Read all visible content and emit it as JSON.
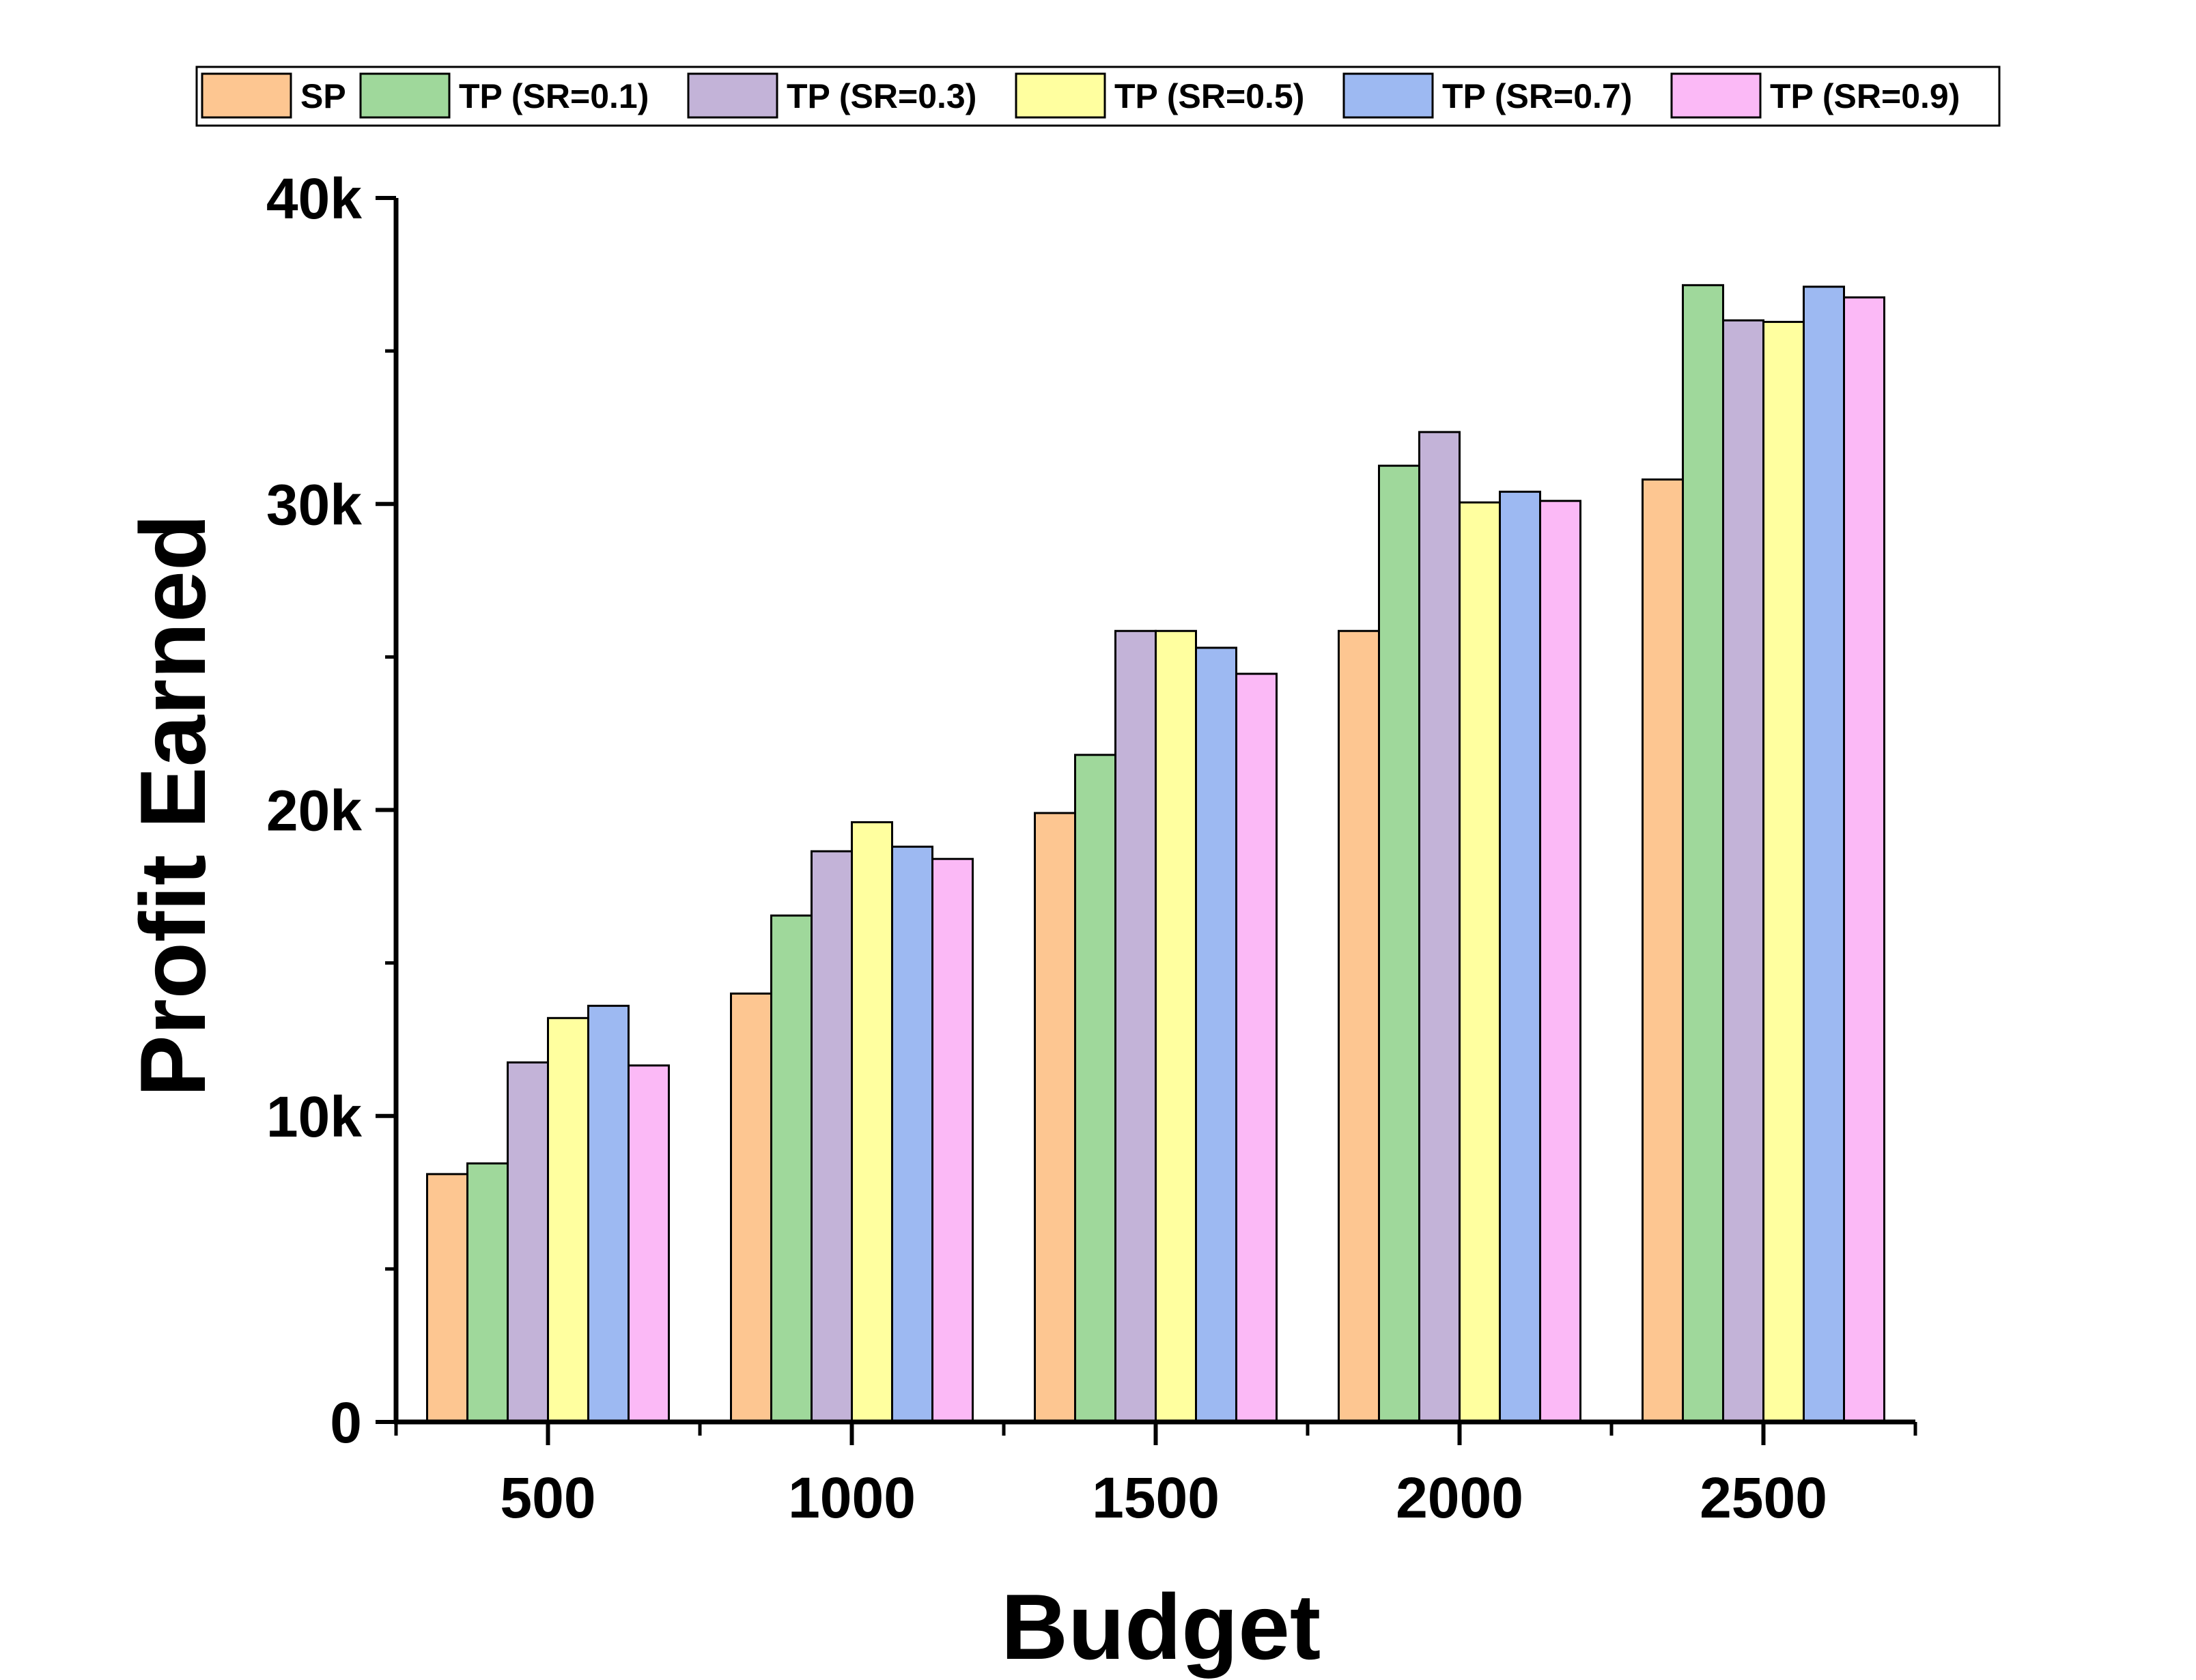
{
  "chart_data": {
    "type": "bar",
    "title": "",
    "xlabel": "Budget",
    "ylabel": "Profit Earned",
    "categories": [
      "500",
      "1000",
      "1500",
      "2000",
      "2500"
    ],
    "ylim": [
      0,
      40000
    ],
    "yticks": [
      {
        "value": 0,
        "label": "0"
      },
      {
        "value": 10000,
        "label": "10k"
      },
      {
        "value": 20000,
        "label": "20k"
      },
      {
        "value": 30000,
        "label": "30k"
      },
      {
        "value": 40000,
        "label": "40k"
      }
    ],
    "grid": false,
    "legend_position": "top",
    "series": [
      {
        "name": "SP",
        "color": "#FDC691",
        "values": [
          8100,
          14000,
          19900,
          25850,
          30800
        ]
      },
      {
        "name": "TP (SR=0.1)",
        "color": "#9FD89B",
        "values": [
          8450,
          16550,
          21800,
          31250,
          37150
        ]
      },
      {
        "name": "TP (SR=0.3)",
        "color": "#C3B3D8",
        "values": [
          11750,
          18650,
          25850,
          32350,
          36000
        ]
      },
      {
        "name": "TP (SR=0.5)",
        "color": "#FFFF9F",
        "values": [
          13200,
          19600,
          25850,
          30050,
          35950
        ]
      },
      {
        "name": "TP (SR=0.7)",
        "color": "#9DB9F2",
        "values": [
          13600,
          18800,
          25300,
          30400,
          37100
        ]
      },
      {
        "name": "TP (SR=0.9)",
        "color": "#FBB9F6",
        "values": [
          11650,
          18400,
          24450,
          30100,
          36750
        ]
      }
    ]
  }
}
